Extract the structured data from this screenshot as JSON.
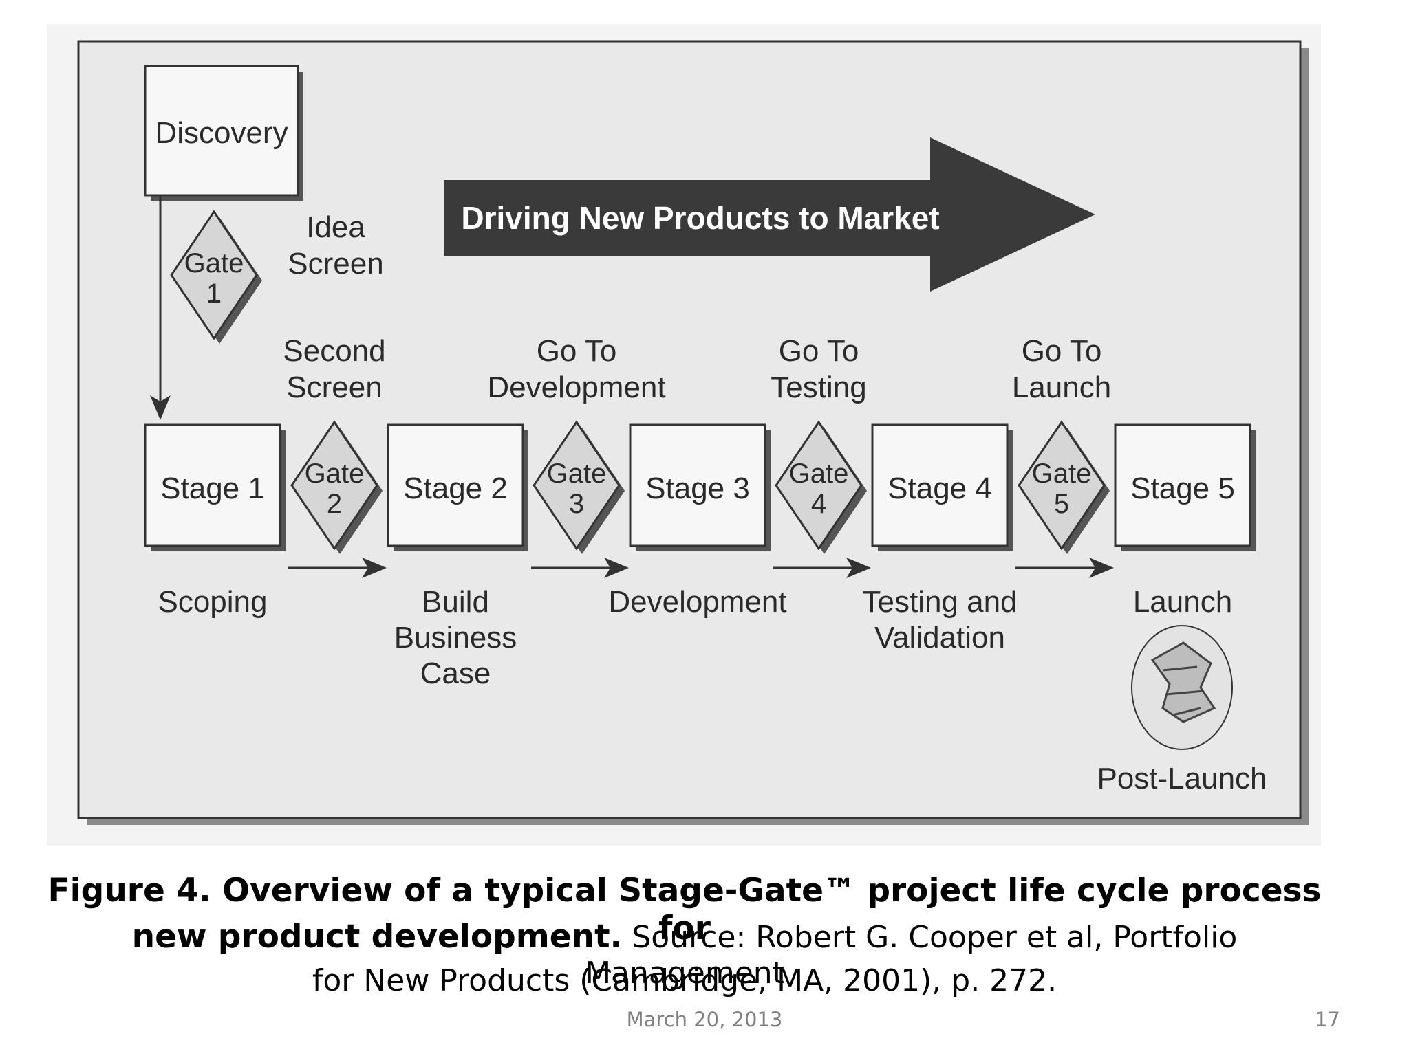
{
  "diagram": {
    "banner": "Driving New Products to Market",
    "discovery": "Discovery",
    "gates": [
      {
        "word": "Gate",
        "num": "1",
        "label": [
          "Idea",
          "Screen"
        ]
      },
      {
        "word": "Gate",
        "num": "2",
        "label": [
          "Second",
          "Screen"
        ]
      },
      {
        "word": "Gate",
        "num": "3",
        "label": [
          "Go To",
          "Development"
        ]
      },
      {
        "word": "Gate",
        "num": "4",
        "label": [
          "Go To",
          "Testing"
        ]
      },
      {
        "word": "Gate",
        "num": "5",
        "label": [
          "Go To",
          "Launch"
        ]
      }
    ],
    "stages": [
      {
        "name": "Stage 1",
        "label": [
          "Scoping"
        ]
      },
      {
        "name": "Stage 2",
        "label": [
          "Build",
          "Business",
          "Case"
        ]
      },
      {
        "name": "Stage 3",
        "label": [
          "Development"
        ]
      },
      {
        "name": "Stage 4",
        "label": [
          "Testing and",
          "Validation"
        ]
      },
      {
        "name": "Stage 5",
        "label": [
          "Launch"
        ]
      }
    ],
    "post_launch": "Post-Launch"
  },
  "caption": {
    "bold_line1": "Figure 4. Overview of a typical Stage-Gate™ project life cycle process for",
    "bold_line2": "new product development.",
    "source_line2": " Source: Robert G. Cooper et al, Portfolio Management",
    "source_line3": "for New Products (Cambridge, MA, 2001), p. 272."
  },
  "footer": {
    "date": "March 20, 2013",
    "page": "17"
  }
}
